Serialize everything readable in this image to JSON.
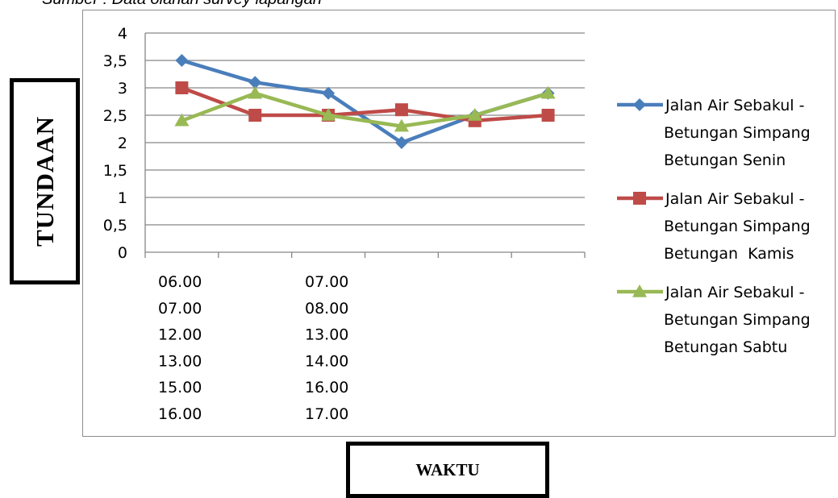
{
  "caption": "Sumber : Data olahan survey lapangan",
  "chart_data": {
    "type": "line",
    "ylabel": "TUNDAAN",
    "xlabel": "WAKTU",
    "ylim": [
      0,
      4
    ],
    "yticks": [
      "0",
      "0,5",
      "1",
      "1,5",
      "2",
      "2,5",
      "3",
      "3,5",
      "4"
    ],
    "grid": true,
    "legend": "right",
    "categories": [
      "06.00 07.00",
      "07.00 08.00",
      "12.00 13.00",
      "13.00 14.00",
      "15.00 16.00",
      "16.00 17.00"
    ],
    "category_column_1": [
      "06.00",
      "07.00",
      "12.00",
      "13.00",
      "15.00",
      "16.00"
    ],
    "category_column_2": [
      "07.00",
      "08.00",
      "13.00",
      "14.00",
      "16.00",
      "17.00"
    ],
    "series": [
      {
        "name": "Jalan Air Sebakul - Betungan Simpang Betungan Senin",
        "legend_lines": [
          "Jalan Air Sebakul -",
          "Betungan Simpang",
          "Betungan Senin"
        ],
        "color": "#4a7ebb",
        "marker": "diamond",
        "values": [
          3.5,
          3.1,
          2.9,
          2.0,
          2.5,
          2.9
        ]
      },
      {
        "name": "Jalan Air Sebakul - Betungan Simpang Betungan Kamis",
        "legend_lines": [
          "Jalan Air Sebakul -",
          "Betungan Simpang",
          "Betungan  Kamis"
        ],
        "color": "#be4b48",
        "marker": "square",
        "values": [
          3.0,
          2.5,
          2.5,
          2.6,
          2.4,
          2.5
        ]
      },
      {
        "name": "Jalan Air Sebakul - Betungan Simpang Betungan Sabtu",
        "legend_lines": [
          "Jalan Air Sebakul -",
          "Betungan Simpang",
          "Betungan Sabtu"
        ],
        "color": "#98b954",
        "marker": "triangle",
        "values": [
          2.4,
          2.9,
          2.5,
          2.3,
          2.5,
          2.9
        ]
      }
    ]
  }
}
